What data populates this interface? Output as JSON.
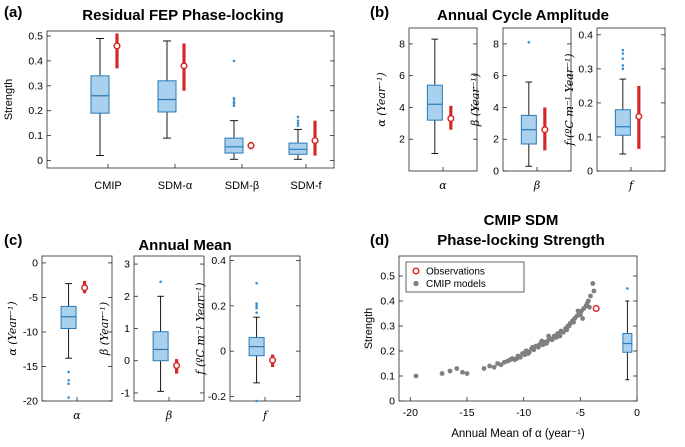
{
  "chart_data": [
    {
      "type": "box",
      "panel_label": "(a)",
      "title": "Residual FEP Phase-locking",
      "ylabel": "Strength",
      "ylim": [
        -0.03,
        0.52
      ],
      "yticks": [
        0,
        0.1,
        0.2,
        0.3,
        0.4,
        0.5
      ],
      "ytick_labels": [
        "0",
        "0.1",
        "0.2",
        "0.3",
        "0.4",
        "0.5"
      ],
      "categories": [
        "CMIP",
        "SDM-α",
        "SDM-β",
        "SDM-f"
      ],
      "boxes": [
        {
          "whisker_low": 0.02,
          "q1": 0.19,
          "median": 0.26,
          "q3": 0.34,
          "whisker_high": 0.49,
          "outliers": []
        },
        {
          "whisker_low": 0.09,
          "q1": 0.195,
          "median": 0.245,
          "q3": 0.32,
          "whisker_high": 0.48,
          "outliers": []
        },
        {
          "whisker_low": 0.005,
          "q1": 0.03,
          "median": 0.055,
          "q3": 0.09,
          "whisker_high": 0.16,
          "outliers": [
            0.22,
            0.23,
            0.235,
            0.245,
            0.25,
            0.4
          ]
        },
        {
          "whisker_low": 0.005,
          "q1": 0.025,
          "median": 0.045,
          "q3": 0.07,
          "whisker_high": 0.125,
          "outliers": [
            0.14,
            0.15,
            0.16,
            0.175
          ]
        }
      ],
      "observations": [
        {
          "value": 0.46,
          "low": 0.37,
          "high": 0.51
        },
        {
          "value": 0.38,
          "low": 0.28,
          "high": 0.47
        },
        {
          "value": 0.06,
          "low": 0.045,
          "high": 0.075
        },
        {
          "value": 0.08,
          "low": 0.02,
          "high": 0.16
        }
      ]
    },
    {
      "type": "box",
      "panel_label": "(b)",
      "title": "Annual Cycle Amplitude",
      "subplots": [
        {
          "category": "α",
          "ylabel": "α (Year⁻¹)",
          "ylim": [
            0,
            9
          ],
          "yticks": [
            2,
            4,
            6,
            8
          ],
          "ytick_labels": [
            "2",
            "4",
            "6",
            "8"
          ],
          "box": {
            "whisker_low": 1.1,
            "q1": 3.2,
            "median": 4.2,
            "q3": 5.4,
            "whisker_high": 8.3,
            "outliers": []
          },
          "observation": {
            "value": 3.3,
            "low": 2.6,
            "high": 4.1
          }
        },
        {
          "category": "β",
          "ylabel": "β (Year⁻¹)",
          "ylim": [
            0,
            9
          ],
          "yticks": [
            0,
            2,
            4,
            6,
            8
          ],
          "ytick_labels": [
            "0",
            "2",
            "4",
            "6",
            "8"
          ],
          "box": {
            "whisker_low": 0.3,
            "q1": 1.7,
            "median": 2.6,
            "q3": 3.5,
            "whisker_high": 5.6,
            "outliers": [
              8.1
            ]
          },
          "observation": {
            "value": 2.6,
            "low": 1.3,
            "high": 4.0
          }
        },
        {
          "category": "f",
          "ylabel": "f (ºC m⁻¹ Year⁻¹)",
          "ylim": [
            0,
            0.42
          ],
          "yticks": [
            0,
            0.1,
            0.2,
            0.3,
            0.4
          ],
          "ytick_labels": [
            "0",
            "0.1",
            "0.2",
            "0.3",
            "0.4"
          ],
          "box": {
            "whisker_low": 0.05,
            "q1": 0.105,
            "median": 0.13,
            "q3": 0.18,
            "whisker_high": 0.27,
            "outliers": [
              0.3,
              0.31,
              0.33,
              0.345,
              0.355
            ]
          },
          "observation": {
            "value": 0.16,
            "low": 0.065,
            "high": 0.25
          }
        }
      ]
    },
    {
      "type": "box",
      "panel_label": "(c)",
      "title": "Annual Mean",
      "subplots": [
        {
          "category": "α",
          "ylabel": "α (Year⁻¹)",
          "ylim": [
            -20,
            1
          ],
          "yticks": [
            -20,
            -15,
            -10,
            -5,
            0
          ],
          "ytick_labels": [
            "-20",
            "-15",
            "-10",
            "-5",
            "0"
          ],
          "box": {
            "whisker_low": -13.8,
            "q1": -9.5,
            "median": -7.8,
            "q3": -6.3,
            "whisker_high": -3.0,
            "outliers": [
              -15.8,
              -17.0,
              -17.5,
              -19.5
            ]
          },
          "observation": {
            "value": -3.6,
            "low": -4.4,
            "high": -2.6
          }
        },
        {
          "category": "β",
          "ylabel": "β (Year⁻¹)",
          "ylim": [
            -1.25,
            3.25
          ],
          "yticks": [
            -1,
            0,
            1,
            2,
            3
          ],
          "ytick_labels": [
            "-1",
            "0",
            "1",
            "2",
            "3"
          ],
          "box": {
            "whisker_low": -0.95,
            "q1": 0.0,
            "median": 0.35,
            "q3": 0.9,
            "whisker_high": 2.0,
            "outliers": [
              2.45
            ]
          },
          "observation": {
            "value": -0.15,
            "low": -0.4,
            "high": 0.05
          }
        },
        {
          "category": "f",
          "ylabel": "f (ºC m⁻¹ Year⁻¹)",
          "ylim": [
            -0.22,
            0.42
          ],
          "yticks": [
            -0.2,
            0,
            0.2,
            0.4
          ],
          "ytick_labels": [
            "-0.2",
            "0",
            "0.2",
            "0.4"
          ],
          "box": {
            "whisker_low": -0.14,
            "q1": -0.02,
            "median": 0.02,
            "q3": 0.06,
            "whisker_high": 0.15,
            "outliers": [
              0.17,
              0.19,
              0.2,
              0.21,
              0.3,
              -0.22
            ]
          },
          "observation": {
            "value": -0.04,
            "low": -0.07,
            "high": -0.015
          }
        }
      ]
    },
    {
      "type": "scatter",
      "panel_label": "(d)",
      "title": "CMIP SDM",
      "subtitle": "Phase-locking Strength",
      "xlabel": "Annual Mean of α (year⁻¹)",
      "ylabel": "Strength",
      "xlim": [
        -21,
        0
      ],
      "ylim": [
        0,
        0.58
      ],
      "xticks": [
        -20,
        -15,
        -10,
        -5,
        0
      ],
      "xtick_labels": [
        "-20",
        "-15",
        "-10",
        "-5",
        "0"
      ],
      "yticks": [
        0,
        0.1,
        0.2,
        0.3,
        0.4,
        0.5
      ],
      "ytick_labels": [
        "0",
        "0.1",
        "0.2",
        "0.3",
        "0.4",
        "0.5"
      ],
      "legend": [
        {
          "label": "Observations",
          "marker": "open-circle",
          "color": "#d62728"
        },
        {
          "label": "CMIP models",
          "marker": "filled-circle",
          "color": "#808080"
        }
      ],
      "models": {
        "x": [
          -19.5,
          -17.2,
          -16.5,
          -15.9,
          -15.4,
          -15.0,
          -13.5,
          -13.0,
          -12.6,
          -12.3,
          -12.0,
          -11.7,
          -11.4,
          -11.0,
          -10.8,
          -10.5,
          -10.3,
          -10.1,
          -9.9,
          -9.7,
          -9.5,
          -9.3,
          -9.1,
          -8.9,
          -8.7,
          -8.5,
          -8.3,
          -8.1,
          -7.9,
          -7.7,
          -7.5,
          -7.3,
          -7.1,
          -6.9,
          -6.7,
          -6.5,
          -6.3,
          -6.1,
          -5.9,
          -5.7,
          -5.5,
          -5.3,
          -5.1,
          -4.9,
          -4.7,
          -4.5,
          -4.3,
          -4.1,
          -3.9,
          -9.8,
          -9.2,
          -8.6,
          -8.0,
          -7.4,
          -6.8,
          -6.2,
          -5.6,
          -5.0,
          -4.4,
          -10.6,
          -11.2,
          -7.0,
          -6.0,
          -5.2,
          -4.8,
          -4.2,
          -3.8,
          -8.4,
          -7.8,
          -9.6
        ],
        "y": [
          0.1,
          0.11,
          0.12,
          0.13,
          0.115,
          0.11,
          0.13,
          0.14,
          0.135,
          0.15,
          0.145,
          0.155,
          0.16,
          0.17,
          0.165,
          0.18,
          0.175,
          0.19,
          0.185,
          0.2,
          0.195,
          0.21,
          0.205,
          0.22,
          0.215,
          0.23,
          0.225,
          0.235,
          0.24,
          0.25,
          0.245,
          0.26,
          0.255,
          0.27,
          0.28,
          0.275,
          0.29,
          0.3,
          0.31,
          0.32,
          0.33,
          0.34,
          0.35,
          0.36,
          0.37,
          0.38,
          0.4,
          0.42,
          0.47,
          0.2,
          0.215,
          0.225,
          0.23,
          0.25,
          0.26,
          0.285,
          0.315,
          0.345,
          0.39,
          0.17,
          0.165,
          0.27,
          0.3,
          0.36,
          0.33,
          0.375,
          0.44,
          0.24,
          0.26,
          0.19
        ]
      },
      "observation": {
        "x": -3.6,
        "y": 0.37
      },
      "marginal_box": {
        "whisker_low": 0.085,
        "q1": 0.195,
        "median": 0.23,
        "q3": 0.27,
        "whisker_high": 0.4,
        "outliers": [
          0.45
        ]
      }
    }
  ]
}
